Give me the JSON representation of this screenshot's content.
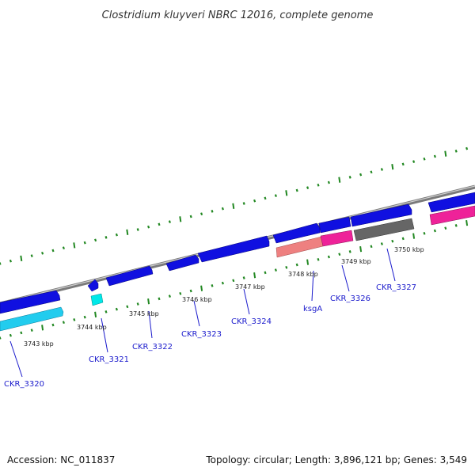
{
  "title": "Clostridium kluyveri NBRC 12016, complete genome",
  "footer": {
    "accession": "Accession: NC_011837",
    "info": "Topology: circular; Length: 3,896,121 bp; Genes: 3,549"
  },
  "colors": {
    "cds_forward": "#1010e0",
    "cds_reverse_cyan": "#22ccee",
    "trna": "#00e8e8",
    "rrna_pink": "#ee2299",
    "salmon": "#ee8080",
    "gray_feature": "#666666",
    "backbone": "#888888",
    "tick_green": "#228822",
    "label_blue": "#1a1acc"
  },
  "scale_labels": [
    "3743 kbp",
    "3744 kbp",
    "3745 kbp",
    "3746 kbp",
    "3747 kbp",
    "3748 kbp",
    "3749 kbp",
    "3750 kbp"
  ],
  "gene_labels": [
    "CKR_3320",
    "CKR_3321",
    "CKR_3322",
    "CKR_3323",
    "CKR_3324",
    "ksgA",
    "CKR_3326",
    "CKR_3327"
  ]
}
